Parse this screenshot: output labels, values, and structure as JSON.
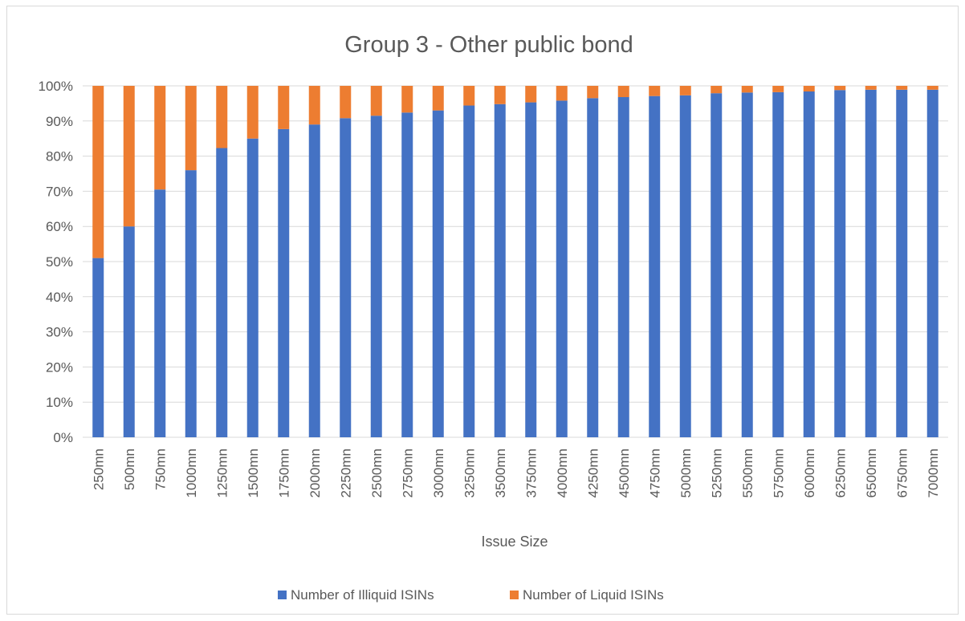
{
  "chart_data": {
    "type": "bar",
    "stacked": true,
    "title": "Group 3 - Other public bond",
    "xlabel": "Issue Size",
    "ylabel": "",
    "ylim": [
      0,
      100
    ],
    "yticks": [
      "0%",
      "10%",
      "20%",
      "30%",
      "40%",
      "50%",
      "60%",
      "70%",
      "80%",
      "90%",
      "100%"
    ],
    "grid": true,
    "legend_position": "bottom",
    "categories": [
      "250mn",
      "500mn",
      "750mn",
      "1000mn",
      "1250mn",
      "1500mn",
      "1750mn",
      "2000mn",
      "2250mn",
      "2500mn",
      "2750mn",
      "3000mn",
      "3250mn",
      "3500mn",
      "3750mn",
      "4000mn",
      "4250mn",
      "4500mn",
      "4750mn",
      "5000mn",
      "5250mn",
      "5500mn",
      "5750mn",
      "6000mn",
      "6250mn",
      "6500mn",
      "6750mn",
      "7000mn"
    ],
    "series": [
      {
        "name": "Number of Illiquid ISINs",
        "color": "#4472C4",
        "values": [
          51,
          60,
          70.5,
          76,
          82.3,
          85,
          87.7,
          89,
          90.8,
          91.5,
          92.4,
          93,
          94.4,
          94.8,
          95.3,
          95.8,
          96.5,
          96.8,
          97.1,
          97.3,
          97.9,
          98.1,
          98.2,
          98.4,
          98.8,
          98.9,
          98.9,
          98.9
        ]
      },
      {
        "name": "Number of Liquid ISINs",
        "color": "#ED7D31",
        "values": [
          49,
          40,
          29.5,
          24,
          17.7,
          15,
          12.3,
          11,
          9.2,
          8.5,
          7.6,
          7,
          5.6,
          5.2,
          4.7,
          4.2,
          3.5,
          3.2,
          2.9,
          2.7,
          2.1,
          1.9,
          1.8,
          1.6,
          1.2,
          1.1,
          1.1,
          1.1
        ]
      }
    ]
  },
  "colors": {
    "gridline": "#d9d9d9",
    "text": "#595959",
    "frame": "#d9d9d9"
  }
}
